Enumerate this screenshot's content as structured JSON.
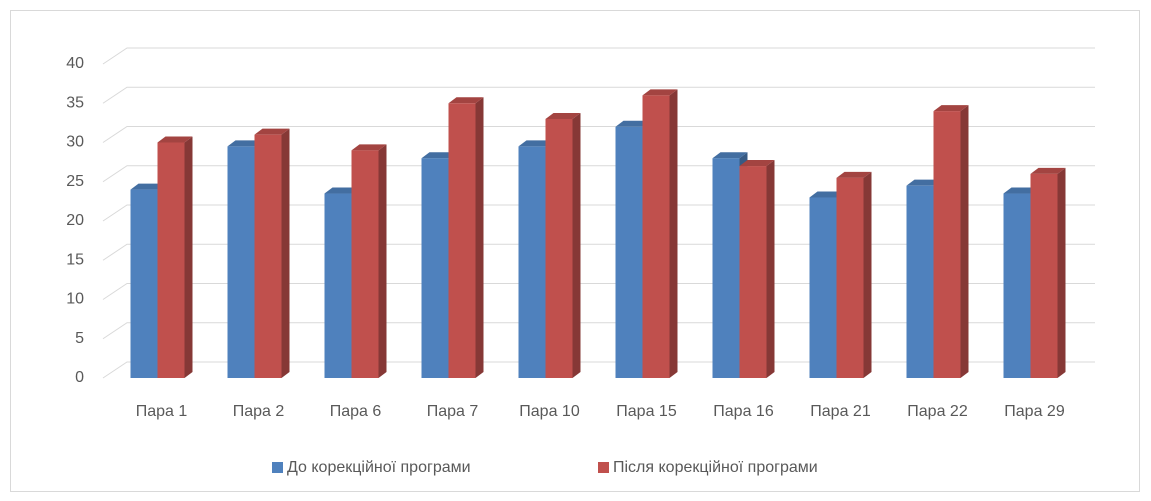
{
  "chart_data": {
    "type": "bar",
    "categories": [
      "Пара 1",
      "Пара 2",
      "Пара 6",
      "Пара 7",
      "Пара 10",
      "Пара 15",
      "Пара 16",
      "Пара 21",
      "Пара 22",
      "Пара 29"
    ],
    "series": [
      {
        "name": "До корекційної програми",
        "color": "#4f81bd",
        "values": [
          24,
          29.5,
          23.5,
          28,
          29.5,
          32,
          28,
          23,
          24.5,
          23.5
        ]
      },
      {
        "name": "Після корекційної програми",
        "color": "#c0504d",
        "values": [
          30,
          31,
          29,
          35,
          33,
          36,
          27,
          25.5,
          34,
          26
        ]
      }
    ],
    "ylim": [
      0,
      40
    ],
    "yticks": [
      0,
      5,
      10,
      15,
      20,
      25,
      30,
      35,
      40
    ],
    "grid": true,
    "legend": "bottom"
  }
}
